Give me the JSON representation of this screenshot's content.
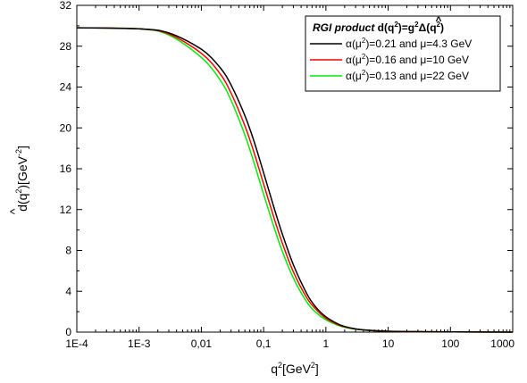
{
  "chart_data": {
    "type": "line",
    "xscale": "log",
    "xlim": [
      0.0001,
      1000
    ],
    "ylim": [
      0,
      32
    ],
    "grid": false,
    "legend_position": "top-right",
    "xlabel": {
      "base": "q",
      "sup": "2",
      "mid": "[GeV",
      "sup2": "2",
      "end": "]"
    },
    "ylabel": {
      "hat": "^",
      "base": "d(q",
      "sup": "2",
      "mid": ")[GeV",
      "sup2": "-2",
      "end": "]"
    },
    "x_ticks": [
      {
        "value": 0.0001,
        "label": "1E-4"
      },
      {
        "value": 0.001,
        "label": "1E-3"
      },
      {
        "value": 0.01,
        "label": "0,01"
      },
      {
        "value": 0.1,
        "label": "0,1"
      },
      {
        "value": 1,
        "label": "1"
      },
      {
        "value": 10,
        "label": "10"
      },
      {
        "value": 100,
        "label": "100"
      },
      {
        "value": 1000,
        "label": "1000"
      }
    ],
    "y_ticks": [
      0,
      4,
      8,
      12,
      16,
      20,
      24,
      28,
      32
    ],
    "legend_title": {
      "italic": "RGI product",
      "rest": " d(q",
      "sup1": "2",
      "rest2": ")=g",
      "sup2": "2",
      "hat": "^",
      "delta": "Δ",
      "rest3": "(q",
      "sup3": "2",
      "rest4": ")"
    },
    "series": [
      {
        "name": "α(μ²)=0.21 and μ=4.3 GeV",
        "legend": {
          "pre": "α(μ",
          "sup": "2",
          "post": ")=0.21 and μ=4.3 GeV"
        },
        "color": "#000000",
        "x": [
          0.0001,
          0.001,
          0.003,
          0.01,
          0.02,
          0.03,
          0.05,
          0.07,
          0.1,
          0.15,
          0.2,
          0.3,
          0.5,
          0.7,
          1,
          1.5,
          2,
          3,
          5,
          10,
          30,
          100,
          1000
        ],
        "y": [
          29.8,
          29.7,
          29.3,
          27.7,
          25.9,
          24.2,
          21.2,
          18.7,
          15.6,
          12.0,
          9.6,
          6.6,
          3.7,
          2.4,
          1.5,
          0.85,
          0.55,
          0.32,
          0.18,
          0.09,
          0.04,
          0.02,
          0.0
        ]
      },
      {
        "name": "α(μ²)=0.16 and μ=10 GeV",
        "legend": {
          "pre": "α(μ",
          "sup": "2",
          "post": ")=0.16 and μ=10  GeV"
        },
        "color": "#ff0000",
        "x": [
          0.0001,
          0.001,
          0.003,
          0.01,
          0.02,
          0.03,
          0.05,
          0.07,
          0.1,
          0.15,
          0.2,
          0.3,
          0.5,
          0.7,
          1,
          1.5,
          2,
          3,
          5,
          10,
          30,
          100,
          1000
        ],
        "y": [
          29.8,
          29.7,
          29.2,
          27.3,
          25.3,
          23.4,
          20.2,
          17.6,
          14.5,
          11.0,
          8.7,
          5.9,
          3.3,
          2.2,
          1.35,
          0.78,
          0.52,
          0.3,
          0.17,
          0.08,
          0.04,
          0.02,
          0.0
        ]
      },
      {
        "name": "α(μ²)=0.13 and μ=22 GeV",
        "legend": {
          "pre": "α(μ",
          "sup": "2",
          "post": ")=0.13 and μ=22  GeV"
        },
        "color": "#00ee00",
        "x": [
          0.0001,
          0.001,
          0.003,
          0.01,
          0.02,
          0.03,
          0.05,
          0.07,
          0.1,
          0.15,
          0.2,
          0.3,
          0.5,
          0.7,
          1,
          1.5,
          2,
          3,
          5,
          10,
          30,
          100,
          1000
        ],
        "y": [
          29.8,
          29.7,
          29.1,
          26.9,
          24.7,
          22.7,
          19.3,
          16.6,
          13.5,
          10.1,
          7.9,
          5.3,
          2.9,
          1.9,
          1.2,
          0.7,
          0.47,
          0.28,
          0.16,
          0.08,
          0.04,
          0.02,
          0.0
        ]
      }
    ]
  }
}
